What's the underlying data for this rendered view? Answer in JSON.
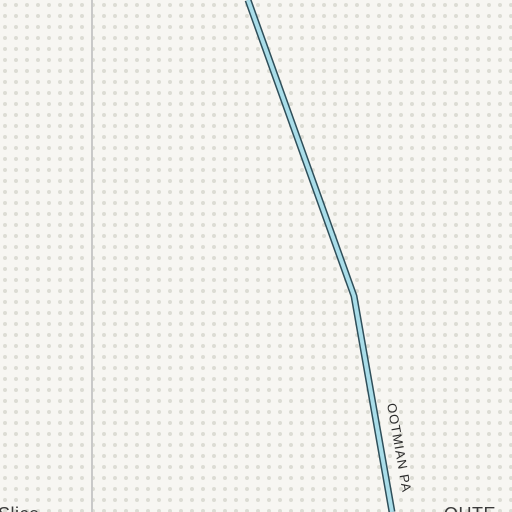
{
  "map": {
    "colors": {
      "background": "#f7f6f2",
      "dot": "#dcdcd4",
      "boundary_line": "#c9c9c9",
      "road_fill": "#a9dde9",
      "road_casing": "#2f4f5a",
      "label": "#3a3a3a"
    },
    "labels": {
      "road": "OOTMIAN PA",
      "place_left": "Slice",
      "place_right": "OUTE"
    }
  }
}
